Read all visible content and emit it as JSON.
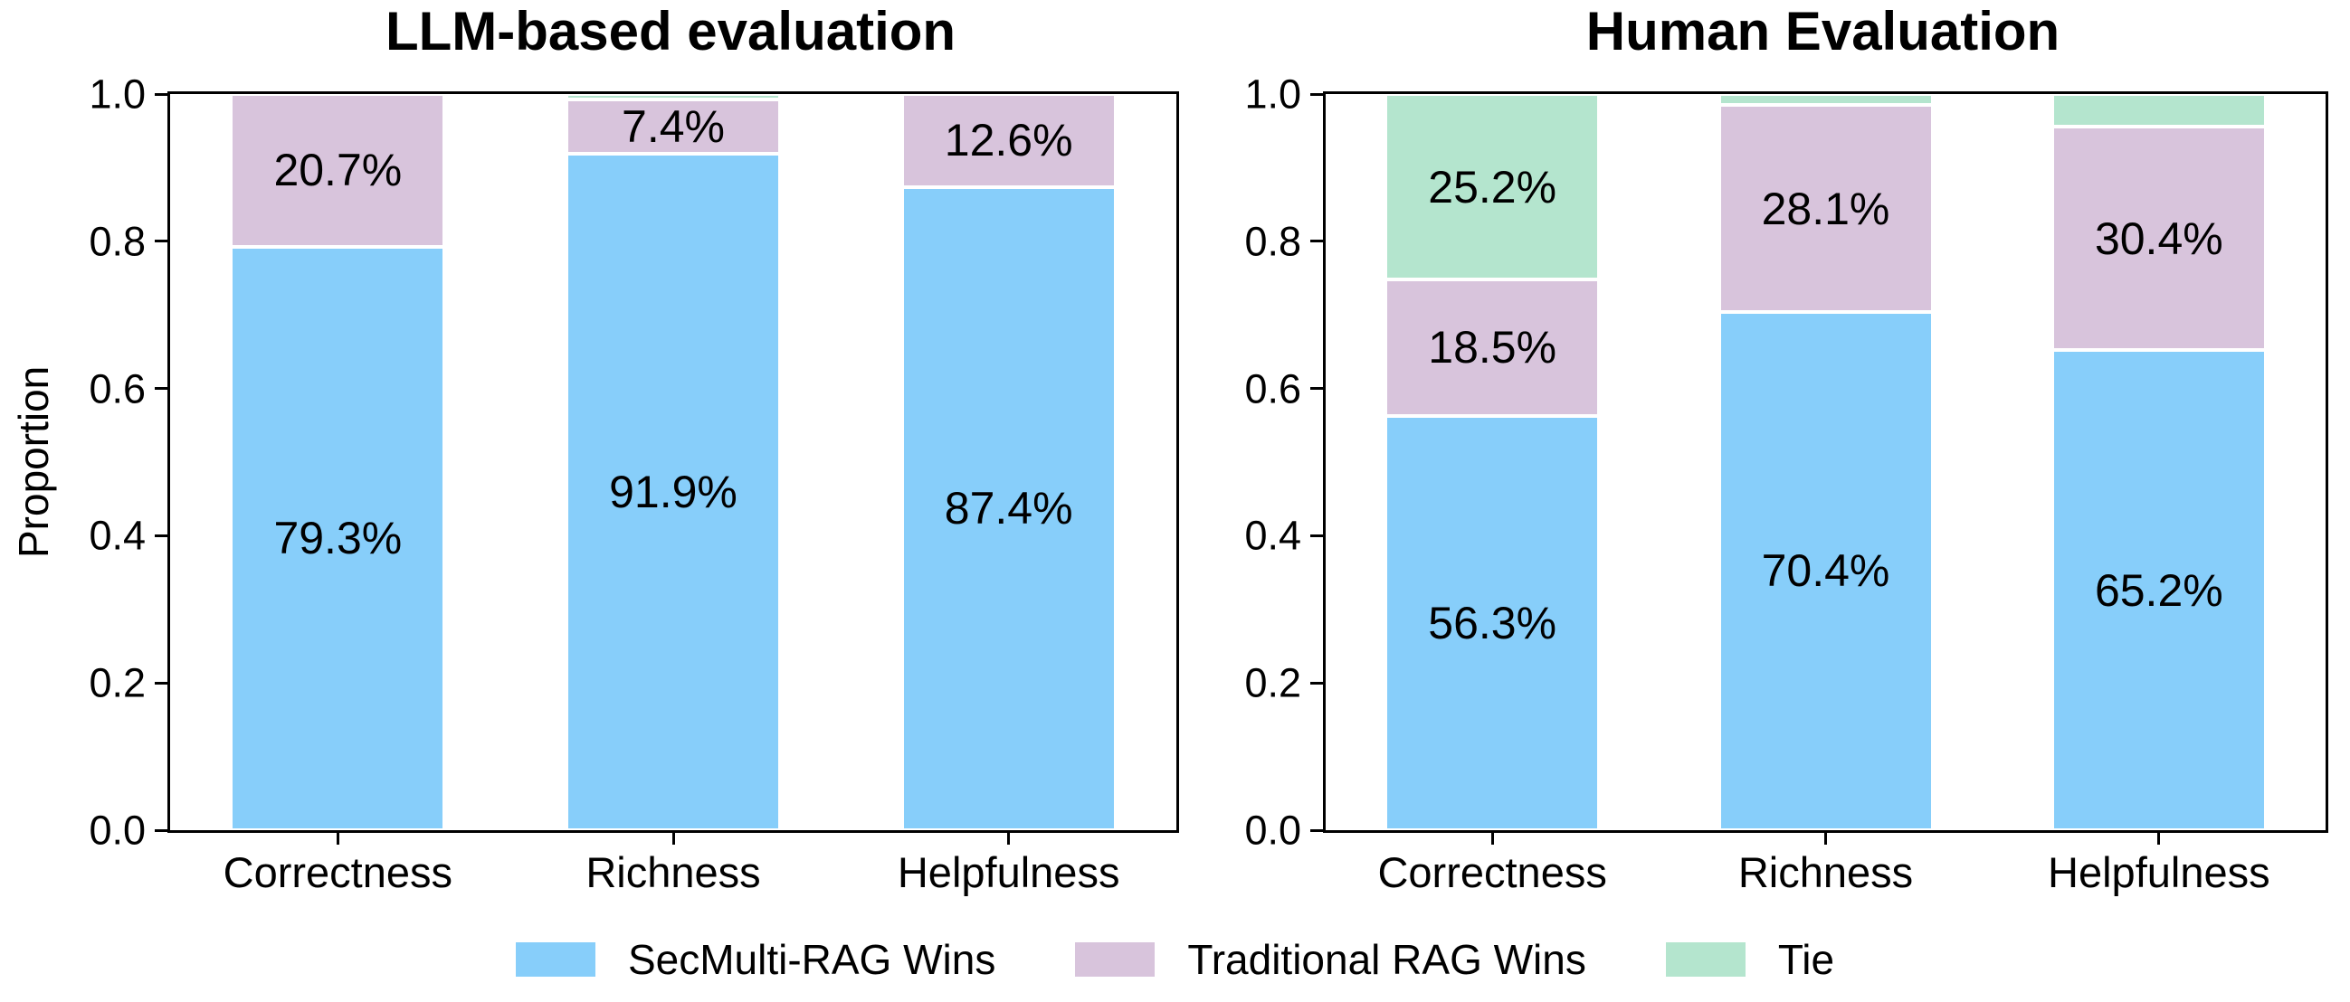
{
  "figure": {
    "legend": [
      {
        "label": "SecMulti-RAG Wins",
        "color": "#87CEFA"
      },
      {
        "label": "Traditional RAG Wins",
        "color": "#D8C4DC"
      },
      {
        "label": "Tie",
        "color": "#B4E5CE"
      }
    ],
    "background": "#ffffff",
    "text_color": "#000000"
  },
  "chart_data": [
    {
      "type": "bar",
      "stacked": true,
      "title": "LLM-based evaluation",
      "xlabel": "",
      "ylabel": "Proportion",
      "categories": [
        "Correctness",
        "Richness",
        "Helpfulness"
      ],
      "yticks": [
        "0.0",
        "0.2",
        "0.4",
        "0.6",
        "0.8",
        "1.0"
      ],
      "ylim": [
        0.0,
        1.0
      ],
      "grid": false,
      "legend_position": "bottom",
      "series": [
        {
          "name": "SecMulti-RAG Wins",
          "color": "#87CEFA",
          "values": [
            79.3,
            91.9,
            87.4
          ],
          "labels": [
            "79.3%",
            "91.9%",
            "87.4%"
          ]
        },
        {
          "name": "Traditional RAG Wins",
          "color": "#D8C4DC",
          "values": [
            20.7,
            7.4,
            12.6
          ],
          "labels": [
            "20.7%",
            "7.4%",
            "12.6%"
          ]
        },
        {
          "name": "Tie",
          "color": "#B4E5CE",
          "values": [
            0.0,
            0.7,
            0.0
          ],
          "labels": [
            "",
            "",
            ""
          ]
        }
      ]
    },
    {
      "type": "bar",
      "stacked": true,
      "title": "Human Evaluation",
      "xlabel": "",
      "ylabel": "",
      "categories": [
        "Correctness",
        "Richness",
        "Helpfulness"
      ],
      "yticks": [
        "0.0",
        "0.2",
        "0.4",
        "0.6",
        "0.8",
        "1.0"
      ],
      "ylim": [
        0.0,
        1.0
      ],
      "grid": false,
      "legend_position": "bottom",
      "series": [
        {
          "name": "SecMulti-RAG Wins",
          "color": "#87CEFA",
          "values": [
            56.3,
            70.4,
            65.2
          ],
          "labels": [
            "56.3%",
            "70.4%",
            "65.2%"
          ]
        },
        {
          "name": "Traditional RAG Wins",
          "color": "#D8C4DC",
          "values": [
            18.5,
            28.1,
            30.4
          ],
          "labels": [
            "18.5%",
            "28.1%",
            "30.4%"
          ]
        },
        {
          "name": "Tie",
          "color": "#B4E5CE",
          "values": [
            25.2,
            1.5,
            4.4
          ],
          "labels": [
            "25.2%",
            "",
            ""
          ]
        }
      ]
    }
  ]
}
